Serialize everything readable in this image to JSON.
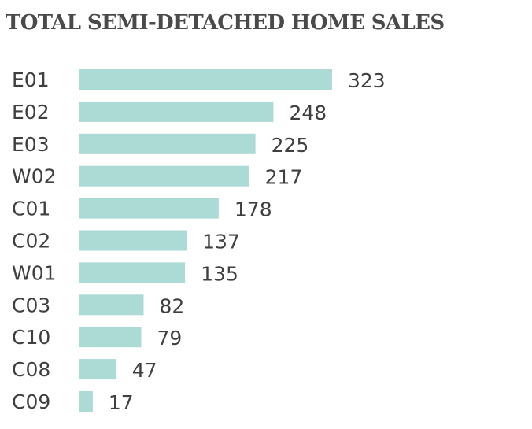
{
  "chart_data": {
    "type": "bar",
    "orientation": "horizontal",
    "title": "TOTAL SEMI-DETACHED HOME SALES",
    "categories": [
      "E01",
      "E02",
      "E03",
      "W02",
      "C01",
      "C02",
      "W01",
      "C03",
      "C10",
      "C08",
      "C09"
    ],
    "values": [
      323,
      248,
      225,
      217,
      178,
      137,
      135,
      82,
      79,
      47,
      17
    ],
    "xlabel": "",
    "ylabel": "",
    "xlim": [
      0,
      323
    ],
    "grid": false,
    "legend": "none",
    "bar_color": "#acdad5",
    "text_color": "#3f3f3f"
  }
}
